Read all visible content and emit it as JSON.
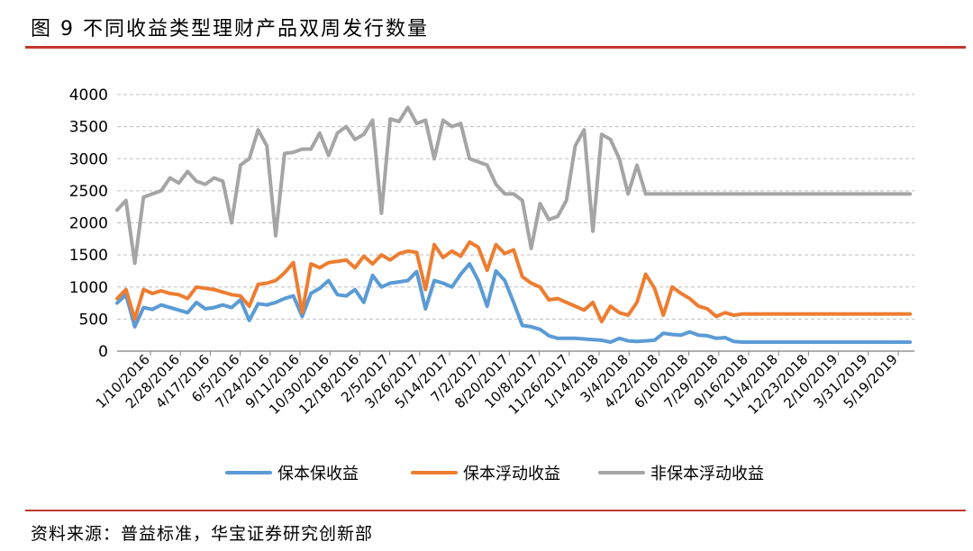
{
  "figure": {
    "title": "图 9  不同收益类型理财产品双周发行数量",
    "source": "资料来源：普益标准，华宝证券研究创新部"
  },
  "chart_data": {
    "type": "line",
    "title": "",
    "xlabel": "",
    "ylabel": "",
    "ylim": [
      0,
      4000
    ],
    "yticks": [
      0,
      500,
      1000,
      1500,
      2000,
      2500,
      3000,
      3500,
      4000
    ],
    "grid": "horizontal dashed",
    "legend_position": "bottom",
    "x_tick_labels": [
      "1/10/2016",
      "2/28/2016",
      "4/17/2016",
      "6/5/2016",
      "7/24/2016",
      "9/11/2016",
      "10/30/2016",
      "12/18/2016",
      "2/5/2017",
      "3/26/2017",
      "5/14/2017",
      "7/2/2017",
      "8/20/2017",
      "10/8/2017",
      "11/26/2017",
      "1/14/2018",
      "3/4/2018",
      "4/22/2018",
      "6/10/2018",
      "7/29/2018",
      "9/16/2018",
      "11/4/2018",
      "12/23/2018",
      "2/10/2019",
      "3/31/2019",
      "5/19/2019"
    ],
    "x": [
      "2016-01-10",
      "2016-01-24",
      "2016-02-07",
      "2016-02-21",
      "2016-03-06",
      "2016-03-20",
      "2016-04-03",
      "2016-04-17",
      "2016-05-01",
      "2016-05-15",
      "2016-05-29",
      "2016-06-12",
      "2016-06-26",
      "2016-07-10",
      "2016-07-24",
      "2016-08-07",
      "2016-08-21",
      "2016-09-04",
      "2016-09-18",
      "2016-10-02",
      "2016-10-16",
      "2016-10-30",
      "2016-11-13",
      "2016-11-27",
      "2016-12-11",
      "2016-12-25",
      "2017-01-08",
      "2017-01-22",
      "2017-02-05",
      "2017-02-19",
      "2017-03-05",
      "2017-03-19",
      "2017-04-02",
      "2017-04-16",
      "2017-04-30",
      "2017-05-14",
      "2017-05-28",
      "2017-06-11",
      "2017-06-25",
      "2017-07-09",
      "2017-07-23",
      "2017-08-06",
      "2017-08-20",
      "2017-09-03",
      "2017-09-17",
      "2017-10-01",
      "2017-10-15",
      "2017-10-29",
      "2017-11-12",
      "2017-11-26",
      "2017-12-10",
      "2017-12-24",
      "2018-01-07",
      "2018-01-21",
      "2018-02-04",
      "2018-02-18",
      "2018-03-04",
      "2018-03-18",
      "2018-04-01",
      "2018-04-15",
      "2018-04-29",
      "2018-05-13",
      "2018-05-27",
      "2018-06-10",
      "2018-06-24",
      "2018-07-08",
      "2018-07-22",
      "2018-08-05",
      "2018-08-19",
      "2018-09-02",
      "2018-09-16",
      "2018-09-30",
      "2018-10-14",
      "2018-10-28",
      "2018-11-11",
      "2018-11-25",
      "2018-12-09",
      "2018-12-23",
      "2019-01-06",
      "2019-01-20",
      "2019-02-03",
      "2019-02-17",
      "2019-03-03",
      "2019-03-17",
      "2019-03-31",
      "2019-04-14",
      "2019-04-28",
      "2019-05-12",
      "2019-05-26",
      "2019-06-09",
      "2019-06-23"
    ],
    "series": [
      {
        "name": "保本保收益",
        "color": "#5b9bd5",
        "values": [
          750,
          880,
          380,
          680,
          650,
          720,
          680,
          640,
          600,
          760,
          660,
          680,
          720,
          680,
          800,
          480,
          740,
          720,
          760,
          820,
          860,
          540,
          900,
          980,
          1100,
          880,
          860,
          960,
          760,
          1180,
          1000,
          1060,
          1080,
          1100,
          1240,
          660,
          1100,
          1060,
          1000,
          1200,
          1360,
          1100,
          700,
          1250,
          1100,
          760,
          400,
          380,
          340,
          240,
          200,
          200,
          200,
          190,
          180,
          170,
          140,
          200,
          160,
          150,
          160,
          170,
          280,
          260,
          250,
          300,
          250,
          240,
          200,
          210,
          150,
          140,
          140,
          140,
          140,
          140,
          140,
          140,
          140,
          140,
          140,
          140,
          140,
          140,
          140,
          140,
          140,
          140,
          140,
          140,
          140
        ]
      },
      {
        "name": "保本浮动收益",
        "color": "#ed7d31",
        "values": [
          820,
          960,
          500,
          960,
          900,
          940,
          900,
          880,
          820,
          1000,
          980,
          960,
          920,
          880,
          860,
          700,
          1040,
          1060,
          1100,
          1220,
          1380,
          600,
          1360,
          1300,
          1380,
          1400,
          1420,
          1300,
          1480,
          1360,
          1500,
          1420,
          1520,
          1560,
          1540,
          960,
          1660,
          1460,
          1560,
          1480,
          1700,
          1620,
          1260,
          1660,
          1520,
          1580,
          1160,
          1060,
          1000,
          800,
          820,
          760,
          700,
          640,
          760,
          460,
          700,
          600,
          560,
          760,
          1200,
          980,
          560,
          1000,
          900,
          820,
          700,
          660,
          540,
          600,
          560,
          580,
          580,
          580,
          580,
          580,
          580,
          580,
          580,
          580,
          580,
          580,
          580,
          580,
          580,
          580,
          580,
          580,
          580,
          580,
          580
        ]
      },
      {
        "name": "非保本浮动收益",
        "color": "#a5a5a5",
        "values": [
          2200,
          2350,
          1370,
          2400,
          2450,
          2500,
          2700,
          2620,
          2800,
          2650,
          2600,
          2700,
          2650,
          2000,
          2900,
          3000,
          3450,
          3200,
          1800,
          3080,
          3100,
          3150,
          3150,
          3400,
          3050,
          3400,
          3500,
          3300,
          3380,
          3600,
          2150,
          3620,
          3580,
          3800,
          3550,
          3600,
          3000,
          3600,
          3500,
          3550,
          3000,
          2950,
          2900,
          2600,
          2450,
          2450,
          2350,
          1600,
          2300,
          2050,
          2100,
          2350,
          3200,
          3450,
          1870,
          3380,
          3300,
          3000,
          2450,
          2900,
          2450,
          2450,
          2450,
          2450,
          2450,
          2450,
          2450,
          2450,
          2450,
          2450,
          2450,
          2450,
          2450,
          2450,
          2450,
          2450,
          2450,
          2450,
          2450,
          2450,
          2450,
          2450,
          2450,
          2450,
          2450,
          2450,
          2450,
          2450,
          2450,
          2450,
          2450
        ]
      }
    ]
  }
}
